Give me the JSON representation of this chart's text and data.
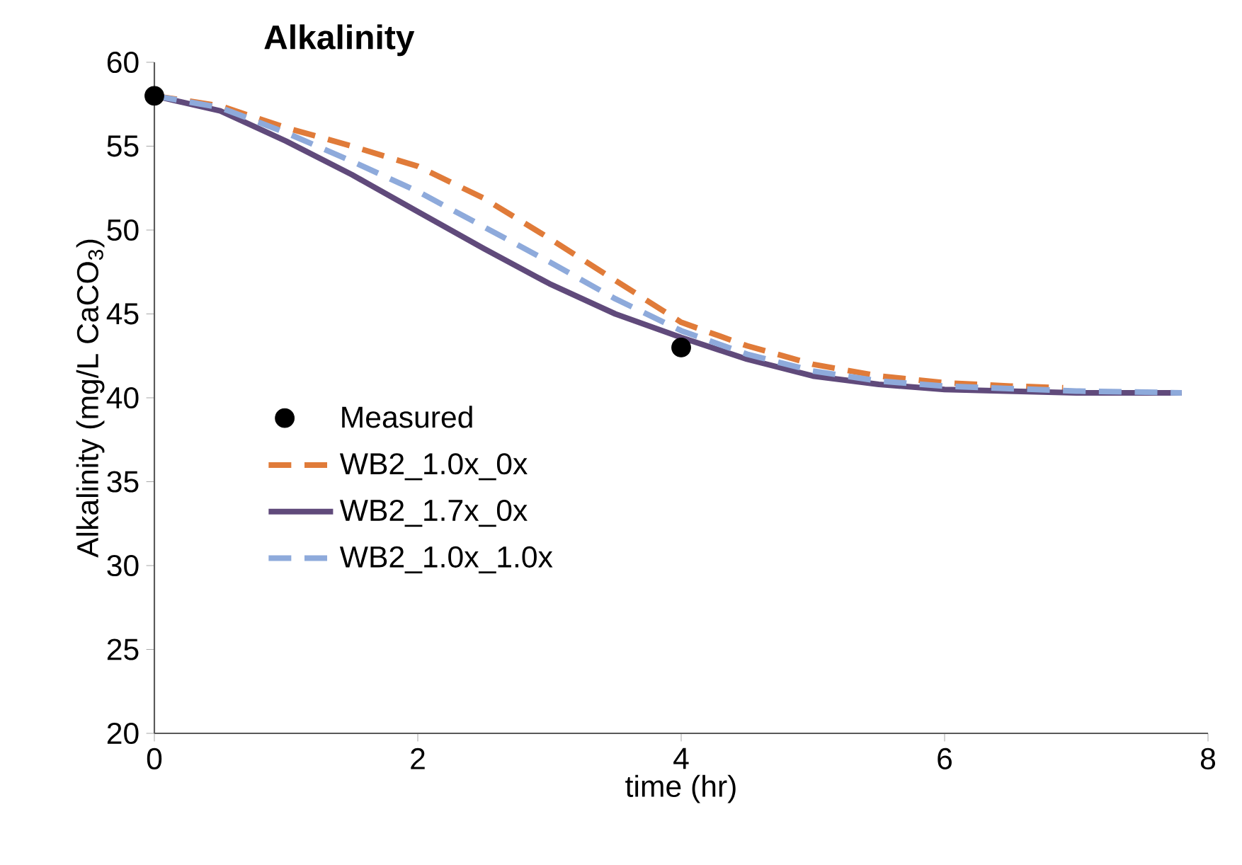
{
  "chart_data": {
    "type": "line",
    "title": "Alkalinity",
    "xlabel": "time (hr)",
    "ylabel": "Alkalinity (mg/L CaCO$_{3}$)",
    "xlim": [
      0,
      8
    ],
    "xticks": [
      0,
      2,
      4,
      6,
      8
    ],
    "ylim": [
      20,
      60
    ],
    "yticks": [
      20,
      25,
      30,
      35,
      40,
      45,
      50,
      55,
      60
    ],
    "grid": false,
    "legend": "left",
    "series": [
      {
        "name": "Measured",
        "type": "scatter",
        "color": "#000000",
        "x": [
          0,
          4
        ],
        "values": [
          58,
          43
        ]
      },
      {
        "name": "WB2_1.0x_0x",
        "line_style": "dashed",
        "color": "#e07b39",
        "x": [
          0,
          0.5,
          1,
          1.5,
          2,
          2.5,
          3,
          3.5,
          4,
          4.5,
          5,
          5.5,
          6,
          6.5,
          6.9
        ],
        "values": [
          58,
          57.4,
          56.1,
          55.0,
          53.8,
          51.9,
          49.5,
          47.0,
          44.5,
          43.1,
          42.0,
          41.3,
          40.9,
          40.7,
          40.6
        ]
      },
      {
        "name": "WB2_1.7x_0x",
        "line_style": "solid",
        "color": "#604a7b",
        "x": [
          0,
          0.5,
          1,
          1.5,
          2,
          2.5,
          3,
          3.5,
          4,
          4.5,
          5,
          5.5,
          6,
          7,
          7.8
        ],
        "values": [
          58,
          57.1,
          55.3,
          53.3,
          51.1,
          48.9,
          46.8,
          45.0,
          43.6,
          42.3,
          41.3,
          40.8,
          40.5,
          40.3,
          40.3
        ]
      },
      {
        "name": "WB2_1.0x_1.0x",
        "line_style": "dashed",
        "color": "#8eaadb",
        "x": [
          0,
          0.5,
          1,
          1.5,
          2,
          2.5,
          3,
          3.5,
          4,
          4.5,
          5,
          5.5,
          6,
          7,
          7.8
        ],
        "values": [
          58,
          57.3,
          55.8,
          54.1,
          52.3,
          50.2,
          48.1,
          45.9,
          44.0,
          42.6,
          41.6,
          41.0,
          40.7,
          40.4,
          40.3
        ]
      }
    ]
  }
}
